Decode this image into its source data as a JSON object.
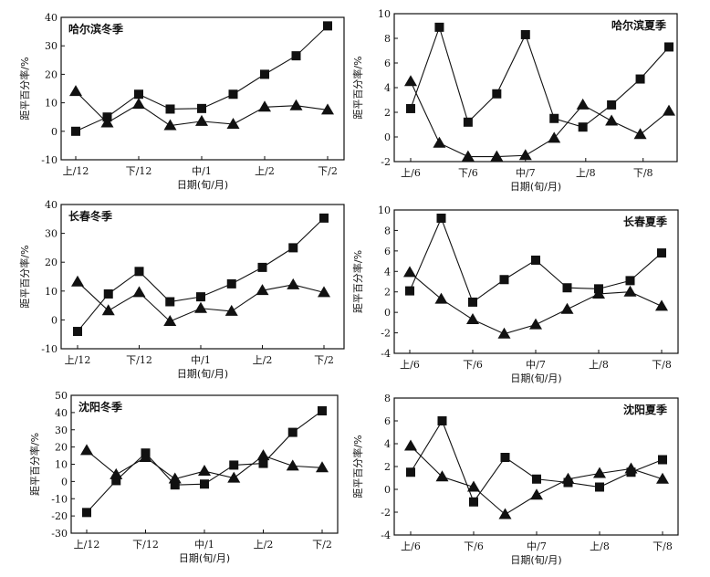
{
  "chart_data": [
    {
      "type": "line",
      "title": "哈尔滨冬季",
      "title_position": "top-left",
      "ylabel": "距平百分率/%",
      "xlabel": "日期(旬/月)",
      "ylim": [
        -10,
        40
      ],
      "yticks": [
        -10,
        0,
        10,
        20,
        30,
        40
      ],
      "xticks": [
        {
          "index": 0,
          "label": "上/12"
        },
        {
          "index": 2,
          "label": "下/12"
        },
        {
          "index": 4,
          "label": "中/1"
        },
        {
          "index": 6,
          "label": "上/2"
        },
        {
          "index": 8,
          "label": "下/2"
        }
      ],
      "series": [
        {
          "name": "square",
          "marker": "square",
          "values": [
            0,
            5,
            13,
            7.8,
            8,
            13,
            20,
            26.5,
            37
          ]
        },
        {
          "name": "triangle",
          "marker": "triangle",
          "values": [
            14,
            3,
            9.5,
            2,
            3.5,
            2.5,
            8.5,
            9,
            7.5
          ]
        }
      ]
    },
    {
      "type": "line",
      "title": "哈尔滨夏季",
      "title_position": "top-right",
      "ylabel": "距平百分率/%",
      "xlabel": "日期(旬/月)",
      "ylim": [
        -2,
        10
      ],
      "yticks": [
        -2,
        0,
        2,
        4,
        6,
        8,
        10
      ],
      "xticks": [
        {
          "index": 0,
          "label": "上/6"
        },
        {
          "index": 2,
          "label": "下/6"
        },
        {
          "index": 4,
          "label": "中/7"
        },
        {
          "index": 6.1,
          "label": "上/8"
        },
        {
          "index": 8.1,
          "label": "下/8"
        }
      ],
      "series": [
        {
          "name": "square",
          "marker": "square",
          "values": [
            2.3,
            8.9,
            1.2,
            3.5,
            8.3,
            1.5,
            0.8,
            2.6,
            4.7,
            7.3
          ]
        },
        {
          "name": "triangle",
          "marker": "triangle",
          "values": [
            4.5,
            -0.5,
            -1.6,
            -1.6,
            -1.5,
            -0.1,
            2.6,
            1.3,
            0.2,
            2.1
          ]
        }
      ]
    },
    {
      "type": "line",
      "title": "长春冬季",
      "title_position": "top-left",
      "ylabel": "距平百分率/%",
      "xlabel": "日期(旬/月)",
      "ylim": [
        -10,
        40
      ],
      "yticks": [
        -10,
        0,
        10,
        20,
        30,
        40
      ],
      "xticks": [
        {
          "index": 0,
          "label": "上/12"
        },
        {
          "index": 2,
          "label": "下/12"
        },
        {
          "index": 4,
          "label": "中/1"
        },
        {
          "index": 6,
          "label": "上/2"
        },
        {
          "index": 8,
          "label": "下/2"
        }
      ],
      "series": [
        {
          "name": "square",
          "marker": "square",
          "values": [
            -4,
            9,
            16.8,
            6.3,
            8,
            12.5,
            18.2,
            25,
            35.3
          ]
        },
        {
          "name": "triangle",
          "marker": "triangle",
          "values": [
            13.2,
            3.2,
            9.5,
            -0.5,
            4,
            3,
            10.2,
            12.2,
            9.5
          ]
        }
      ]
    },
    {
      "type": "line",
      "title": "长春夏季",
      "title_position": "top-right",
      "ylabel": "距平百分率/%",
      "xlabel": "日期(旬/月)",
      "ylim": [
        -4,
        10
      ],
      "yticks": [
        -4,
        -2,
        0,
        2,
        4,
        6,
        8,
        10
      ],
      "xticks": [
        {
          "index": 0,
          "label": "上/6"
        },
        {
          "index": 2,
          "label": "下/6"
        },
        {
          "index": 4,
          "label": "中/7"
        },
        {
          "index": 6,
          "label": "上/8"
        },
        {
          "index": 8,
          "label": "下/8"
        }
      ],
      "series": [
        {
          "name": "square",
          "marker": "square",
          "values": [
            2.1,
            9.2,
            1.0,
            3.2,
            5.1,
            2.4,
            2.3,
            3.1,
            5.8
          ]
        },
        {
          "name": "triangle",
          "marker": "triangle",
          "values": [
            3.9,
            1.3,
            -0.7,
            -2.1,
            -1.2,
            0.3,
            1.8,
            2.0,
            0.6
          ]
        }
      ]
    },
    {
      "type": "line",
      "title": "沈阳冬季",
      "title_position": "top-left",
      "ylabel": "距平百分率/%",
      "xlabel": "日期(旬/月)",
      "ylim": [
        -30,
        50
      ],
      "yticks": [
        -30,
        -20,
        -10,
        0,
        10,
        20,
        30,
        40,
        50
      ],
      "xticks": [
        {
          "index": 0,
          "label": "上/12"
        },
        {
          "index": 2,
          "label": "下/12"
        },
        {
          "index": 4,
          "label": "中/1"
        },
        {
          "index": 6,
          "label": "上/2"
        },
        {
          "index": 8,
          "label": "下/2"
        }
      ],
      "series": [
        {
          "name": "square",
          "marker": "square",
          "values": [
            -18,
            0.5,
            16.5,
            -2,
            -1.5,
            9.5,
            10.5,
            28.5,
            41
          ]
        },
        {
          "name": "triangle",
          "marker": "triangle",
          "values": [
            18,
            4,
            14,
            1.5,
            6,
            2,
            15,
            9,
            8
          ]
        }
      ]
    },
    {
      "type": "line",
      "title": "沈阳夏季",
      "title_position": "top-right",
      "ylabel": "距平百分率/%",
      "xlabel": "日期(旬/月)",
      "ylim": [
        -4,
        8
      ],
      "yticks": [
        -4,
        -2,
        0,
        2,
        4,
        6,
        8
      ],
      "xticks": [
        {
          "index": 0,
          "label": "上/6"
        },
        {
          "index": 2,
          "label": "下/6"
        },
        {
          "index": 4,
          "label": "中/7"
        },
        {
          "index": 6,
          "label": "上/8"
        },
        {
          "index": 8,
          "label": "下/8"
        }
      ],
      "series": [
        {
          "name": "square",
          "marker": "square",
          "values": [
            1.5,
            6.0,
            -1.1,
            2.8,
            0.9,
            0.6,
            0.2,
            1.5,
            2.6
          ]
        },
        {
          "name": "triangle",
          "marker": "triangle",
          "values": [
            3.8,
            1.1,
            0.2,
            -2.2,
            -0.5,
            0.9,
            1.4,
            1.8,
            0.9
          ]
        }
      ]
    }
  ]
}
